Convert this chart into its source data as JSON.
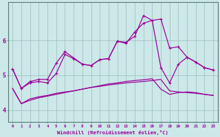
{
  "bg_color": "#cce8e8",
  "line_color": "#990099",
  "grid_color": "#99bbbb",
  "spine_color": "#557777",
  "xlim": [
    -0.5,
    23.5
  ],
  "ylim": [
    3.65,
    7.1
  ],
  "yticks": [
    4,
    5,
    6
  ],
  "xticks": [
    0,
    1,
    2,
    3,
    4,
    5,
    6,
    7,
    8,
    9,
    10,
    11,
    12,
    13,
    14,
    15,
    16,
    17,
    18,
    19,
    20,
    21,
    22,
    23
  ],
  "xlabel": "Windchill (Refroidissement éolien,°C)",
  "line1_x": [
    0,
    1,
    2,
    3,
    4,
    5,
    6,
    7,
    8,
    9,
    10,
    11,
    12,
    13,
    14,
    15,
    16,
    17,
    18,
    19,
    20,
    21,
    22,
    23
  ],
  "line1_y": [
    5.18,
    4.62,
    4.82,
    4.88,
    4.88,
    5.35,
    5.68,
    5.5,
    5.32,
    5.28,
    5.45,
    5.48,
    5.98,
    5.95,
    6.12,
    6.72,
    6.58,
    6.62,
    5.78,
    5.82,
    5.52,
    5.38,
    5.22,
    5.15
  ],
  "line2_x": [
    0,
    1,
    2,
    3,
    4,
    5,
    6,
    7,
    8,
    9,
    10,
    11,
    12,
    13,
    14,
    15,
    16,
    17,
    18,
    19,
    20,
    21,
    22,
    23
  ],
  "line2_y": [
    5.18,
    4.62,
    4.78,
    4.82,
    4.78,
    5.05,
    5.6,
    5.48,
    5.32,
    5.28,
    5.45,
    5.48,
    5.98,
    5.92,
    6.25,
    6.5,
    6.58,
    5.22,
    4.78,
    5.32,
    5.52,
    5.38,
    5.22,
    5.15
  ],
  "line3_x": [
    0,
    1,
    2,
    3,
    4,
    5,
    6,
    7,
    8,
    9,
    10,
    11,
    12,
    13,
    14,
    15,
    16,
    17,
    18,
    19,
    20,
    21,
    22,
    23
  ],
  "line3_y": [
    4.62,
    4.18,
    4.32,
    4.38,
    4.42,
    4.48,
    4.52,
    4.55,
    4.6,
    4.65,
    4.68,
    4.72,
    4.75,
    4.78,
    4.8,
    4.82,
    4.85,
    4.88,
    4.55,
    4.52,
    4.5,
    4.48,
    4.45,
    4.42
  ],
  "line4_x": [
    0,
    1,
    2,
    3,
    4,
    5,
    6,
    7,
    8,
    9,
    10,
    11,
    12,
    13,
    14,
    15,
    16,
    17,
    18,
    19,
    20,
    21,
    22,
    23
  ],
  "line4_y": [
    4.62,
    4.18,
    4.28,
    4.35,
    4.4,
    4.45,
    4.5,
    4.55,
    4.6,
    4.65,
    4.7,
    4.75,
    4.78,
    4.82,
    4.85,
    4.87,
    4.9,
    4.6,
    4.45,
    4.5,
    4.52,
    4.5,
    4.45,
    4.42
  ]
}
